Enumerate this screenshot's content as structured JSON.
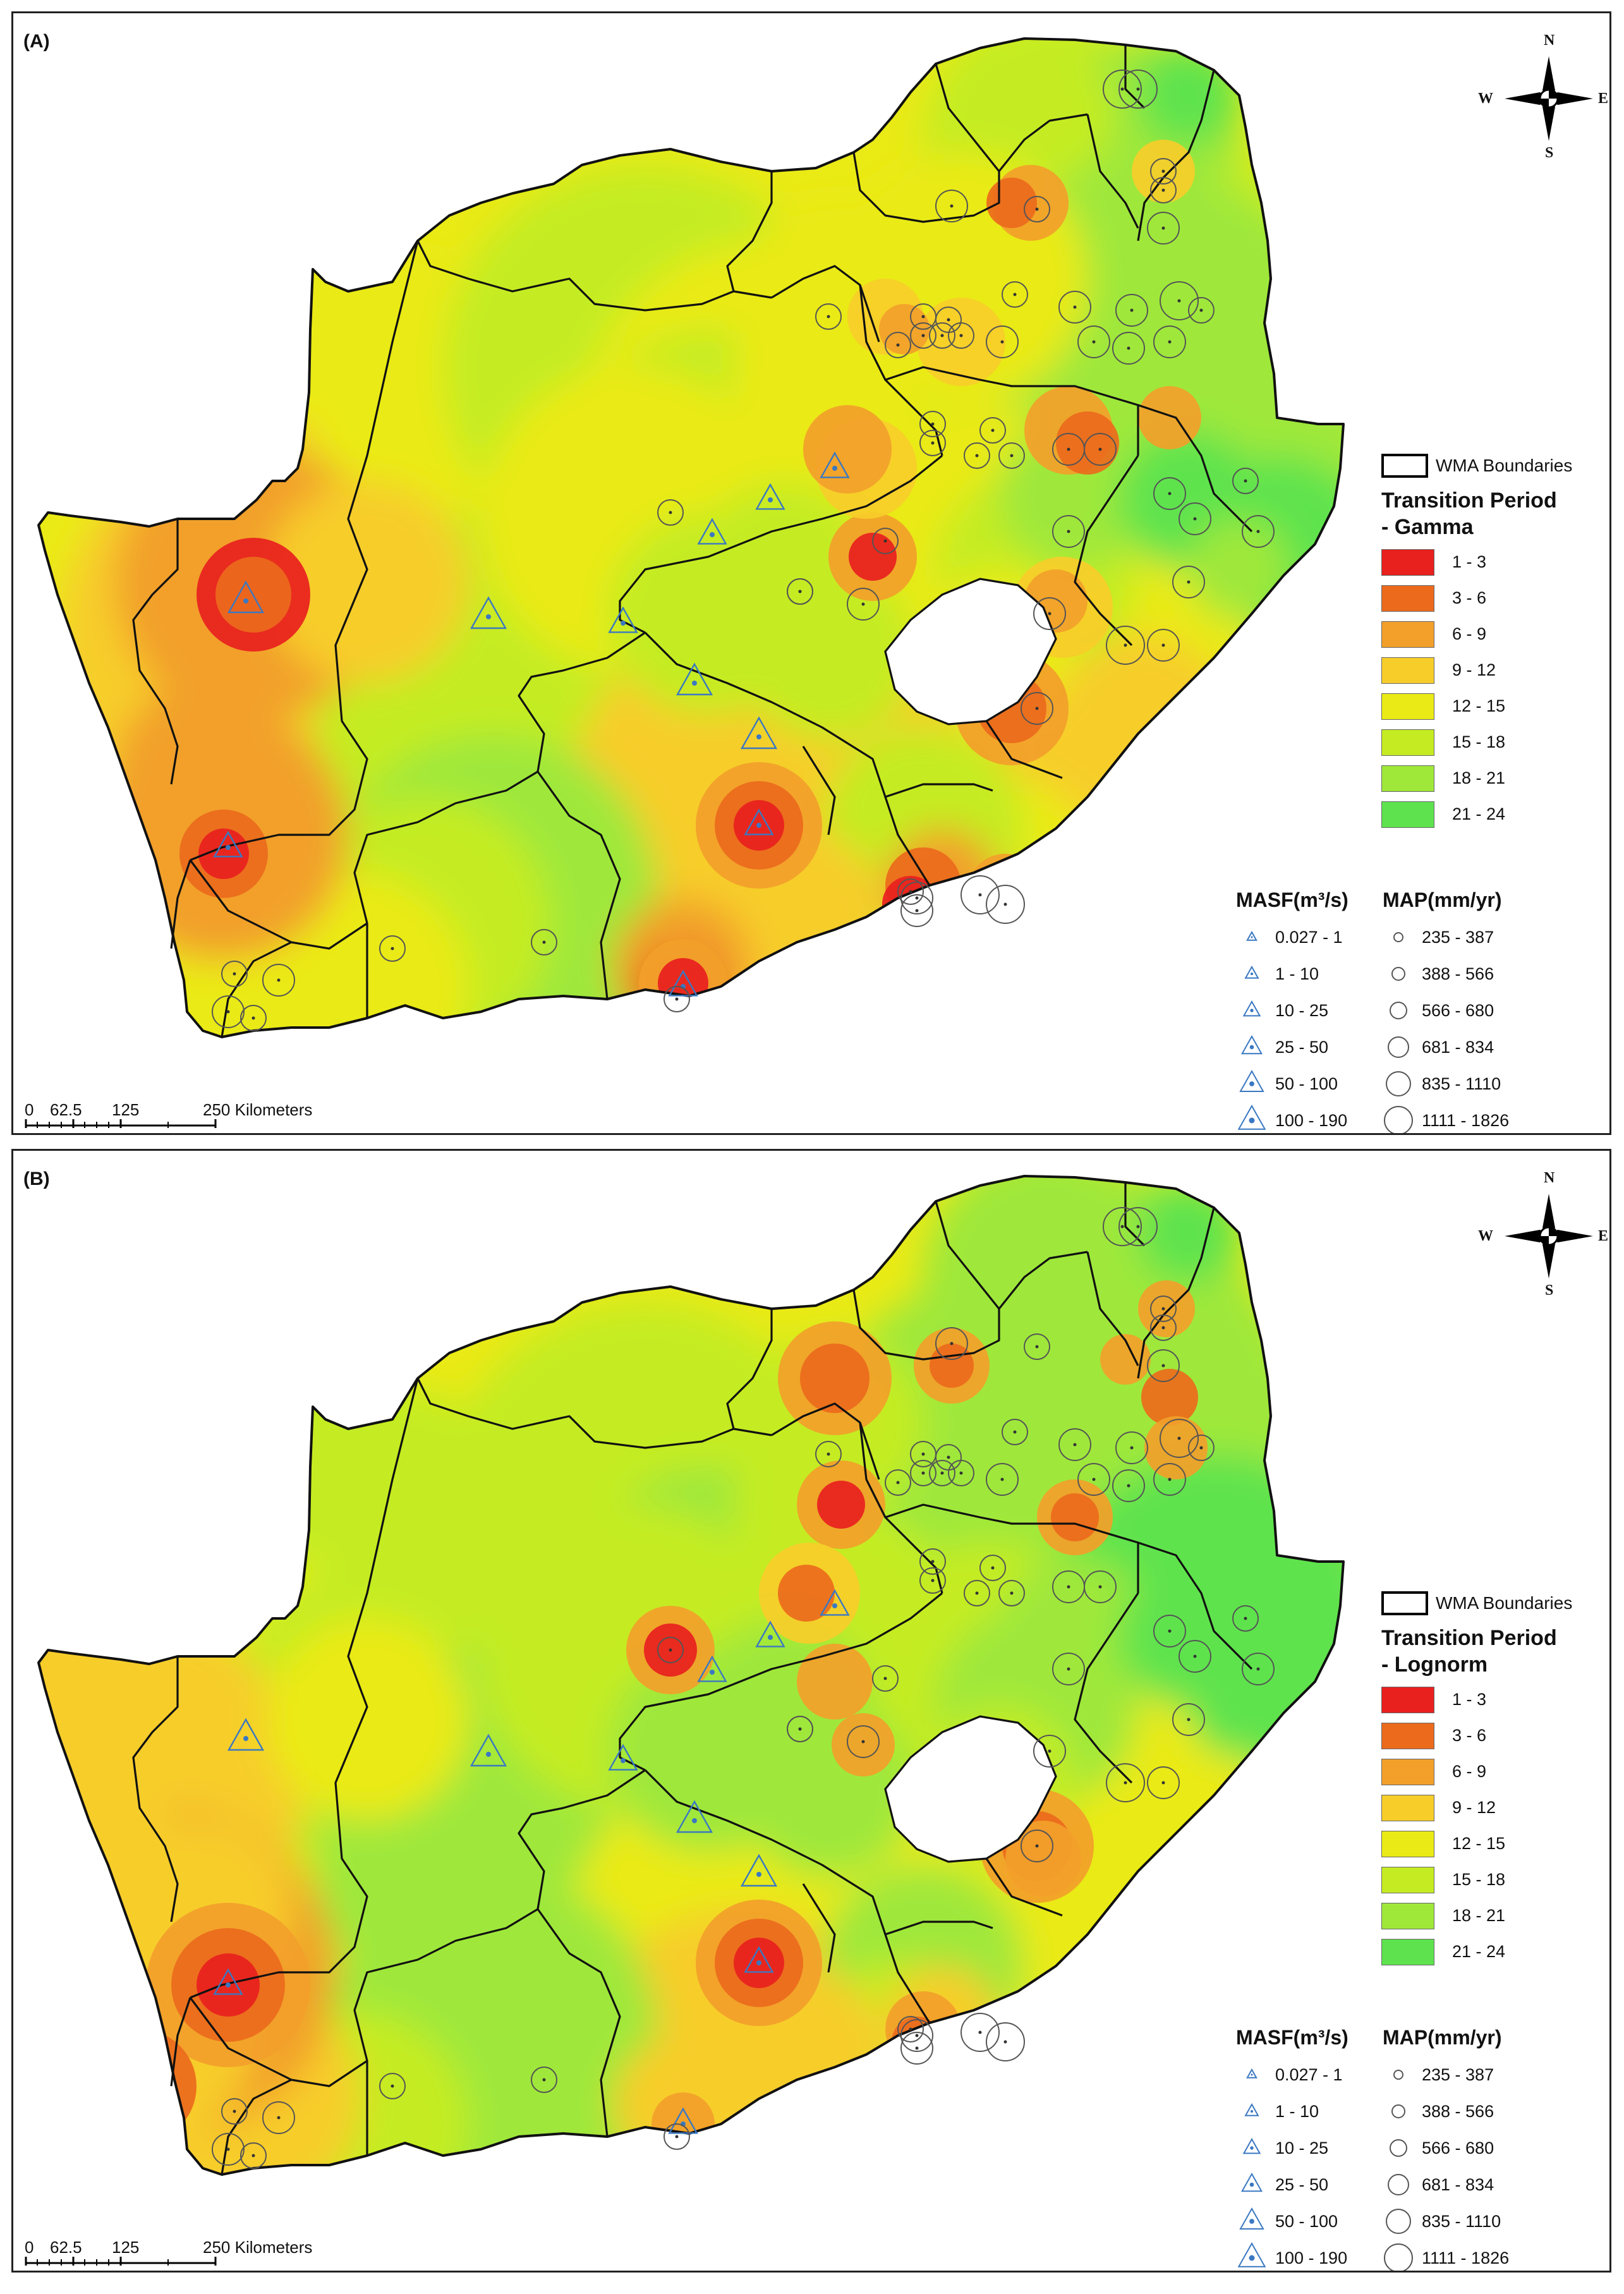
{
  "panels": [
    {
      "id": "A",
      "label": "(A)",
      "legend_title_line1": "Transition Period",
      "legend_title_line2": "- Gamma"
    },
    {
      "id": "B",
      "label": "(B)",
      "legend_title_line1": "Transition Period",
      "legend_title_line2": "- Lognorm"
    }
  ],
  "legend": {
    "wma_label": "WMA Boundaries",
    "classes": [
      {
        "label": "1 - 3",
        "color": "#e8201e"
      },
      {
        "label": "3 - 6",
        "color": "#eb6a1c"
      },
      {
        "label": "6 - 9",
        "color": "#f2a02a"
      },
      {
        "label": "9 - 12",
        "color": "#f7cd2a"
      },
      {
        "label": "12 - 15",
        "color": "#eaea16"
      },
      {
        "label": "15 - 18",
        "color": "#c5ec22"
      },
      {
        "label": "18 - 21",
        "color": "#9fe83a"
      },
      {
        "label": "21 - 24",
        "color": "#5ee34e"
      }
    ],
    "masf_title": "MASF(m³/s)",
    "map_title": "MAP(mm/yr)",
    "masf_classes": [
      "0.027 - 1",
      "1 - 10",
      "10 - 25",
      "25 - 50",
      "50 - 100",
      "100 - 190"
    ],
    "map_classes": [
      "235 - 387",
      "388 - 566",
      "566 - 680",
      "681 - 834",
      "835 - 1110",
      "1111 - 1826"
    ]
  },
  "compass": {
    "n": "N",
    "s": "S",
    "e": "E",
    "w": "W"
  },
  "scale": {
    "ticks": [
      "0",
      "62.5",
      "125",
      "250 Kilometers"
    ]
  },
  "colors": {
    "ocean": "#ffffff",
    "border": "#111111",
    "lesotho": "#ffffff",
    "triangle": "#3a78c2",
    "circle": "#555555"
  }
}
